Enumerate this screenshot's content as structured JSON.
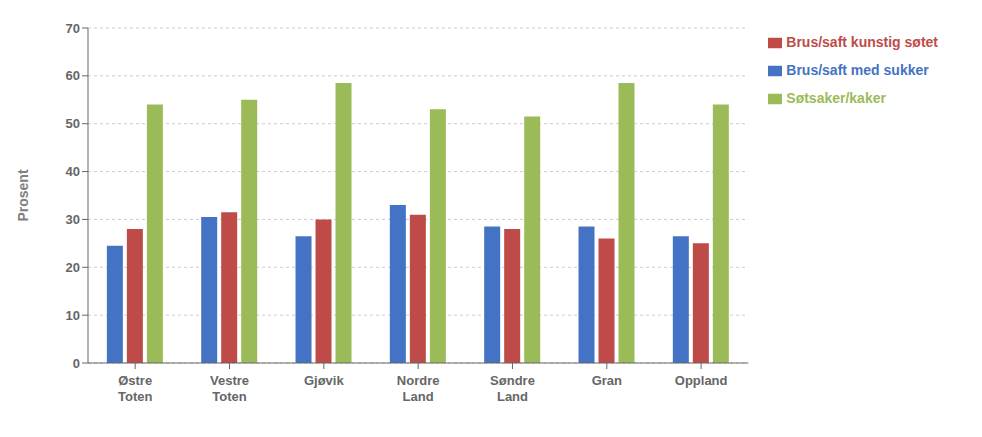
{
  "chart_data": {
    "type": "bar",
    "categories": [
      "Østre\nToten",
      "Vestre\nToten",
      "Gjøvik",
      "Nordre\nLand",
      "Søndre\nLand",
      "Gran",
      "Oppland"
    ],
    "series": [
      {
        "name": "Brus/saft med sukker",
        "values": [
          24.5,
          30.5,
          26.5,
          33.0,
          28.5,
          28.5,
          26.5
        ],
        "color": "#4472C4"
      },
      {
        "name": "Brus/saft kunstig søtet",
        "values": [
          28.0,
          31.5,
          30.0,
          31.0,
          28.0,
          26.0,
          25.0
        ],
        "color": "#BE4B48"
      },
      {
        "name": "Søtsaker/kaker",
        "values": [
          54.0,
          55.0,
          58.5,
          53.0,
          51.5,
          58.5,
          54.0
        ],
        "color": "#9BBB59"
      }
    ],
    "ylabel": "Prosent",
    "ylim": [
      0,
      70
    ],
    "yticks": [
      0,
      10,
      20,
      30,
      40,
      50,
      60,
      70
    ],
    "grid": true,
    "legend": "right"
  }
}
